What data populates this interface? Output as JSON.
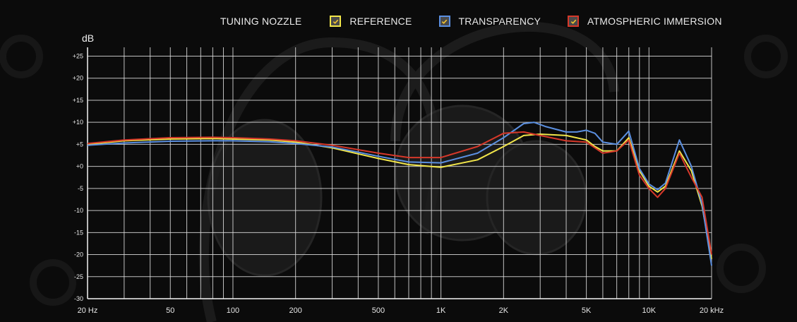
{
  "legend": {
    "title": "TUNING NOZZLE",
    "items": [
      {
        "label": "REFERENCE",
        "color": "#f2e64a",
        "checked": true
      },
      {
        "label": "TRANSPARENCY",
        "color": "#5b8fe0",
        "checked": true
      },
      {
        "label": "ATMOSPHERIC IMMERSION",
        "color": "#d6382a",
        "checked": true
      }
    ]
  },
  "chart_data": {
    "type": "line",
    "title": "",
    "ylabel": "dB",
    "xlabel": "",
    "x_scale": "log",
    "xlim": [
      20,
      20000
    ],
    "ylim": [
      -30,
      27
    ],
    "grid": true,
    "x_ticks": [
      {
        "value": 20,
        "label": "20 Hz"
      },
      {
        "value": 50,
        "label": "50"
      },
      {
        "value": 100,
        "label": "100"
      },
      {
        "value": 200,
        "label": "200"
      },
      {
        "value": 500,
        "label": "500"
      },
      {
        "value": 1000,
        "label": "1K"
      },
      {
        "value": 2000,
        "label": "2K"
      },
      {
        "value": 5000,
        "label": "5K"
      },
      {
        "value": 10000,
        "label": "10K"
      },
      {
        "value": 20000,
        "label": "20 kHz"
      }
    ],
    "y_ticks": [
      {
        "value": 25,
        "label": "+25"
      },
      {
        "value": 20,
        "label": "+20"
      },
      {
        "value": 15,
        "label": "+15"
      },
      {
        "value": 10,
        "label": "+10"
      },
      {
        "value": 5,
        "label": "+5"
      },
      {
        "value": 0,
        "label": "+0"
      },
      {
        "value": -5,
        "label": "-5"
      },
      {
        "value": -10,
        "label": "-10"
      },
      {
        "value": -15,
        "label": "-15"
      },
      {
        "value": -20,
        "label": "-20"
      },
      {
        "value": -25,
        "label": "-25"
      },
      {
        "value": -30,
        "label": "-30"
      }
    ],
    "series": [
      {
        "name": "REFERENCE",
        "color": "#f2e64a",
        "x": [
          20,
          30,
          50,
          80,
          100,
          150,
          200,
          300,
          500,
          700,
          1000,
          1500,
          2000,
          2500,
          3000,
          4000,
          5000,
          5500,
          6000,
          7000,
          8000,
          9000,
          10000,
          11000,
          12000,
          14000,
          16000,
          18000,
          20000
        ],
        "y": [
          5.0,
          5.8,
          6.2,
          6.3,
          6.2,
          6.0,
          5.5,
          4.2,
          1.8,
          0.4,
          -0.2,
          1.5,
          4.5,
          7.0,
          7.3,
          7.0,
          6.0,
          4.5,
          3.5,
          3.5,
          6.5,
          -1.0,
          -4.5,
          -5.8,
          -4.5,
          3.5,
          -1.0,
          -9.0,
          -21.0
        ]
      },
      {
        "name": "TRANSPARENCY",
        "color": "#5b8fe0",
        "x": [
          20,
          30,
          50,
          80,
          100,
          150,
          200,
          300,
          500,
          700,
          1000,
          1500,
          2000,
          2500,
          2800,
          3200,
          4000,
          4500,
          5000,
          5500,
          6000,
          7000,
          8000,
          9000,
          10000,
          11000,
          12000,
          14000,
          16000,
          18000,
          20000
        ],
        "y": [
          4.8,
          5.3,
          5.7,
          5.8,
          5.8,
          5.6,
          5.2,
          4.4,
          2.3,
          1.0,
          0.8,
          3.0,
          6.5,
          9.7,
          10.0,
          9.0,
          7.8,
          7.8,
          8.2,
          7.5,
          5.5,
          5.0,
          8.0,
          -0.5,
          -4.0,
          -5.3,
          -3.8,
          6.0,
          0.0,
          -8.5,
          -22.5
        ]
      },
      {
        "name": "ATMOSPHERIC IMMERSION",
        "color": "#d6382a",
        "x": [
          20,
          30,
          50,
          80,
          100,
          150,
          200,
          300,
          500,
          700,
          1000,
          1500,
          2000,
          2500,
          3000,
          4000,
          5000,
          5500,
          6000,
          7000,
          8000,
          9000,
          10000,
          11000,
          12000,
          14000,
          16000,
          18000,
          20000
        ],
        "y": [
          5.2,
          6.0,
          6.5,
          6.6,
          6.5,
          6.2,
          5.8,
          4.8,
          3.0,
          2.0,
          2.0,
          4.5,
          7.5,
          7.8,
          7.0,
          5.8,
          5.5,
          4.2,
          3.0,
          3.5,
          6.0,
          -2.0,
          -5.0,
          -7.0,
          -5.0,
          3.0,
          -2.5,
          -7.0,
          -20.0
        ]
      }
    ]
  }
}
